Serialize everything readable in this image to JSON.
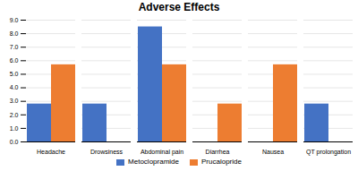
{
  "chart_data": {
    "type": "bar",
    "title": "Adverse Effects",
    "categories": [
      "Headache",
      "Drowsiness",
      "Abdominal pain",
      "Diarrhea",
      "Nausea",
      "QT prolongation"
    ],
    "series": [
      {
        "name": "Metoclopramide",
        "color": "#4472C4",
        "values": [
          2.8,
          2.8,
          8.5,
          0,
          0,
          2.8
        ]
      },
      {
        "name": "Prucalopride",
        "color": "#ED7D31",
        "values": [
          5.7,
          0,
          5.7,
          2.8,
          5.7,
          0
        ]
      }
    ],
    "ylim": [
      0,
      9.0
    ],
    "yticks": [
      {
        "value": 0.0,
        "label": "0.0"
      },
      {
        "value": 1.0,
        "label": "1.0"
      },
      {
        "value": 2.0,
        "label": "2.0"
      },
      {
        "value": 3.0,
        "label": "3.0"
      },
      {
        "value": 4.0,
        "label": "4.0"
      },
      {
        "value": 5.0,
        "label": "5.0"
      },
      {
        "value": 6.0,
        "label": "6.0"
      },
      {
        "value": 7.0,
        "label": "7.0"
      },
      {
        "value": 8.0,
        "label": "8.0"
      },
      {
        "value": 9.0,
        "label": "9.0"
      }
    ],
    "grid": true,
    "legend": "bottom"
  }
}
